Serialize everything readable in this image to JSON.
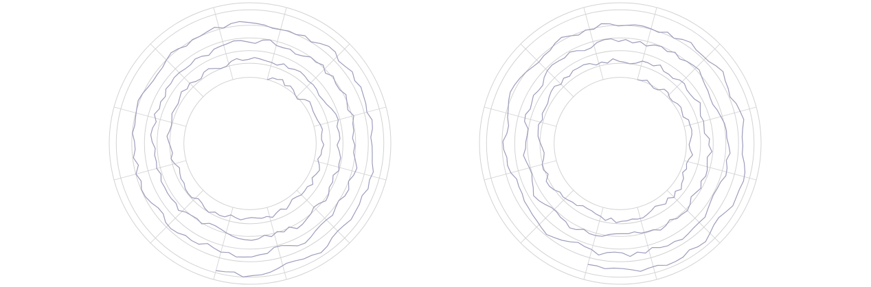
{
  "chart_data": [
    {
      "type": "line",
      "projection": "polar-spiral",
      "title": "",
      "xlabel": "",
      "ylabel": "",
      "grid": true,
      "legend": "none",
      "turns": 3.5,
      "samples_per_turn": 90,
      "spiral_start_angle_deg": 75,
      "r_start": 0.48,
      "r_end": 0.92,
      "r_grid": [
        0.47,
        0.57,
        0.66,
        0.75,
        0.84,
        0.95,
        1.0
      ],
      "spoke_angles_deg": [
        15,
        45,
        75,
        105,
        135,
        165,
        195,
        225,
        255,
        285,
        315,
        345
      ],
      "noise_amplitude": 0.022,
      "seed": 7,
      "color": "#9c9cbc",
      "grid_color": "#d2d2d2"
    },
    {
      "type": "line",
      "projection": "polar-spiral",
      "title": "",
      "xlabel": "",
      "ylabel": "",
      "grid": true,
      "legend": "none",
      "turns": 3.5,
      "samples_per_turn": 90,
      "spiral_start_angle_deg": 75,
      "r_start": 0.48,
      "r_end": 0.92,
      "r_grid": [
        0.47,
        0.57,
        0.66,
        0.75,
        0.84,
        0.95,
        1.0
      ],
      "spoke_angles_deg": [
        15,
        45,
        75,
        105,
        135,
        165,
        195,
        225,
        255,
        285,
        315,
        345
      ],
      "noise_amplitude": 0.022,
      "seed": 13,
      "color": "#9c9cbc",
      "grid_color": "#d2d2d2"
    }
  ]
}
